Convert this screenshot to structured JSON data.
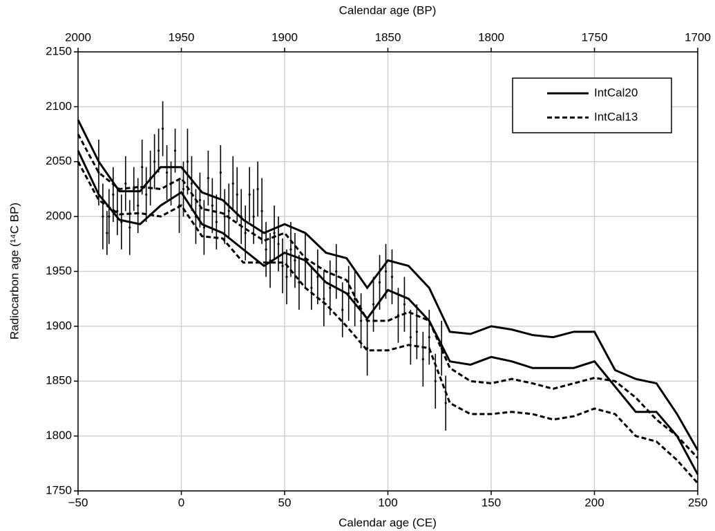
{
  "chart_data": {
    "type": "band-lines",
    "xlabel": "Calendar age (CE)",
    "x2label": "Calendar age (BP)",
    "ylabel": "Radiocarbon age (¹⁴C BP)",
    "xlim": [
      -50,
      250
    ],
    "xticks": [
      {
        "value": -50,
        "label": "−50"
      },
      0,
      50,
      100,
      150,
      200,
      250
    ],
    "x2lim": [
      2000,
      1700
    ],
    "x2ticks": [
      2000,
      1950,
      1900,
      1850,
      1800,
      1750,
      1700
    ],
    "ylim": [
      1750,
      2150
    ],
    "yticks": [
      1750,
      1800,
      1850,
      1900,
      1950,
      2000,
      2050,
      2100,
      2150
    ],
    "grid": true,
    "legend": "upper right",
    "x": [
      -50,
      -40,
      -30,
      -20,
      -10,
      0,
      10,
      20,
      30,
      40,
      50,
      60,
      70,
      80,
      90,
      100,
      110,
      120,
      130,
      140,
      150,
      160,
      170,
      180,
      190,
      200,
      210,
      220,
      230,
      240,
      250
    ],
    "series": [
      {
        "name": "IntCal20",
        "color": "#000000",
        "linestyle": "solid",
        "upper": [
          2088,
          2050,
          2023,
          2023,
          2045,
          2045,
          2022,
          2015,
          1997,
          1985,
          1993,
          1985,
          1967,
          1962,
          1935,
          1960,
          1955,
          1935,
          1895,
          1893,
          1900,
          1897,
          1892,
          1890,
          1895,
          1895,
          1860,
          1852,
          1848,
          1820,
          1787
        ],
        "lower": [
          2060,
          2020,
          1997,
          1993,
          2010,
          2022,
          1993,
          1985,
          1970,
          1955,
          1967,
          1960,
          1940,
          1930,
          1907,
          1933,
          1925,
          1905,
          1868,
          1865,
          1872,
          1868,
          1862,
          1862,
          1862,
          1868,
          1845,
          1822,
          1822,
          1800,
          1765
        ]
      },
      {
        "name": "IntCal13",
        "color": "#000000",
        "linestyle": "dashed",
        "upper": [
          2075,
          2040,
          2025,
          2027,
          2025,
          2035,
          2007,
          2003,
          1990,
          1978,
          1985,
          1962,
          1950,
          1942,
          1905,
          1905,
          1913,
          1905,
          1862,
          1850,
          1848,
          1852,
          1848,
          1843,
          1848,
          1853,
          1850,
          1835,
          1815,
          1800,
          1780
        ],
        "lower": [
          2050,
          2015,
          2002,
          2003,
          2000,
          2010,
          1982,
          1980,
          1958,
          1958,
          1958,
          1935,
          1920,
          1900,
          1878,
          1878,
          1883,
          1880,
          1830,
          1820,
          1820,
          1822,
          1820,
          1815,
          1818,
          1825,
          1820,
          1800,
          1795,
          1778,
          1757
        ]
      }
    ],
    "measurements": {
      "color": "#000000",
      "x": [
        -40,
        -38,
        -36,
        -35,
        -33,
        -31,
        -29,
        -27,
        -25,
        -23,
        -21,
        -19,
        -17,
        -15,
        -13,
        -11,
        -9,
        -7,
        -5,
        -3,
        -1,
        1,
        3,
        5,
        7,
        9,
        11,
        13,
        15,
        17,
        19,
        21,
        23,
        25,
        27,
        29,
        31,
        33,
        35,
        37,
        39,
        41,
        43,
        45,
        47,
        49,
        51,
        53,
        55,
        57,
        60,
        63,
        66,
        69,
        72,
        75,
        78,
        81,
        84,
        87,
        90,
        93,
        96,
        99,
        102,
        105,
        108,
        111,
        114,
        117,
        120,
        123,
        126,
        128
      ],
      "y": [
        2040,
        2000,
        1985,
        2000,
        2020,
        2005,
        1995,
        2030,
        1990,
        2025,
        2010,
        2045,
        2020,
        2035,
        2050,
        2060,
        2080,
        2040,
        2030,
        2060,
        2010,
        2025,
        2050,
        2030,
        2000,
        2015,
        1990,
        2035,
        2010,
        1995,
        2040,
        2000,
        2005,
        2030,
        2020,
        2000,
        1985,
        2020,
        2000,
        2025,
        2005,
        1970,
        1960,
        1985,
        1975,
        1955,
        1945,
        1970,
        1960,
        1940,
        1960,
        1935,
        1945,
        1925,
        1935,
        1950,
        1915,
        1930,
        1925,
        1905,
        1880,
        1920,
        1940,
        1950,
        1945,
        1910,
        1920,
        1890,
        1895,
        1870,
        1890,
        1850,
        1880,
        1830
      ],
      "err": [
        30,
        30,
        20,
        25,
        25,
        22,
        25,
        25,
        25,
        20,
        25,
        25,
        25,
        25,
        25,
        20,
        25,
        25,
        20,
        20,
        25,
        25,
        30,
        25,
        25,
        25,
        25,
        25,
        25,
        25,
        25,
        25,
        25,
        25,
        25,
        25,
        25,
        25,
        25,
        25,
        30,
        25,
        25,
        25,
        25,
        25,
        25,
        25,
        25,
        25,
        25,
        20,
        25,
        25,
        25,
        25,
        25,
        25,
        25,
        25,
        25,
        25,
        25,
        25,
        25,
        25,
        25,
        25,
        25,
        25,
        25,
        25,
        25,
        25
      ]
    }
  }
}
